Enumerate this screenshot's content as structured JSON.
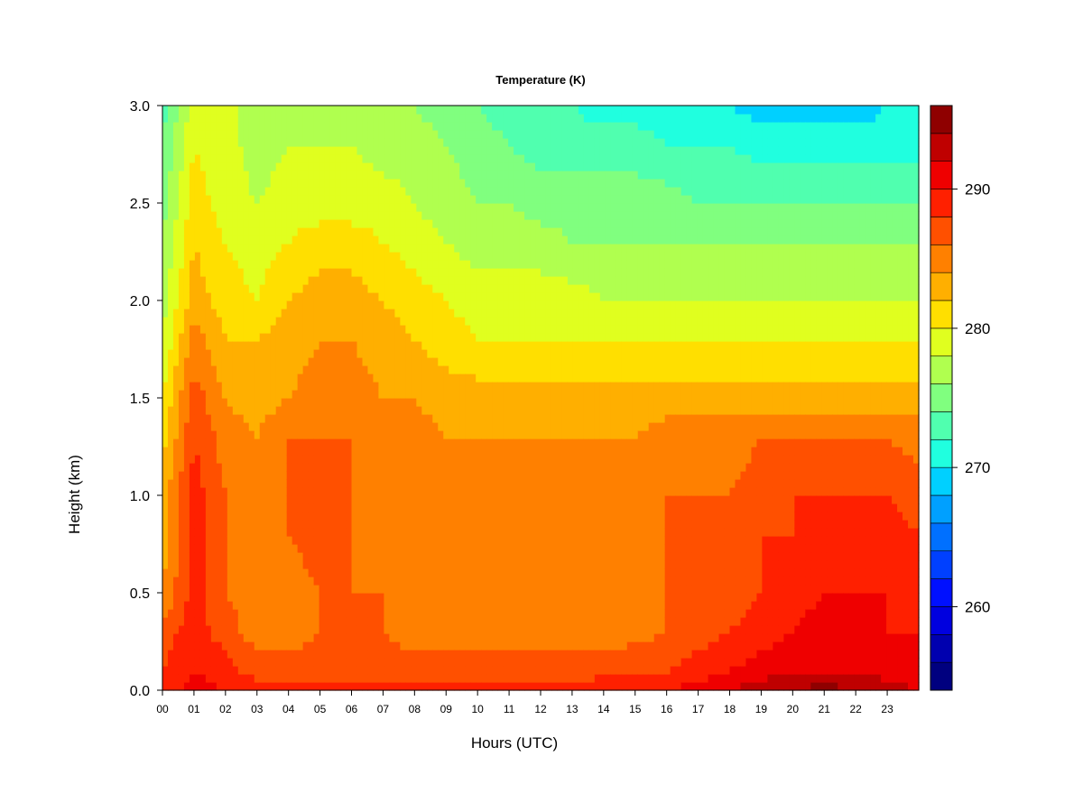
{
  "chart_data": {
    "type": "heatmap",
    "title": "Temperature (K)",
    "xlabel": "Hours (UTC)",
    "ylabel": "Height (km)",
    "xlim": [
      0,
      24
    ],
    "ylim": [
      0.0,
      3.0
    ],
    "x_ticks": [
      "00",
      "01",
      "02",
      "03",
      "04",
      "05",
      "06",
      "07",
      "08",
      "09",
      "10",
      "11",
      "12",
      "13",
      "14",
      "15",
      "16",
      "17",
      "18",
      "19",
      "20",
      "21",
      "22",
      "23"
    ],
    "y_ticks": [
      "0.0",
      "0.5",
      "1.0",
      "1.5",
      "2.0",
      "2.5",
      "3.0"
    ],
    "colorbar": {
      "label_values": [
        "260",
        "270",
        "280",
        "290"
      ],
      "range": [
        254,
        296
      ],
      "levels": 21,
      "colors": [
        "#00007F",
        "#0000AF",
        "#0000DF",
        "#0010FF",
        "#0040FF",
        "#0070FF",
        "#00A0FF",
        "#00D0FF",
        "#20FFDF",
        "#50FFAF",
        "#80FF7F",
        "#B0FF4F",
        "#E0FF1F",
        "#FFDF00",
        "#FFAF00",
        "#FF8000",
        "#FF5000",
        "#FF2000",
        "#EF0000",
        "#BF0000",
        "#8F0000"
      ]
    },
    "height_km": [
      0.0,
      0.1,
      0.3,
      0.5,
      0.8,
      1.0,
      1.3,
      1.5,
      1.8,
      2.0,
      2.3,
      2.5,
      2.8,
      3.0
    ],
    "hours_utc": [
      0,
      1,
      2,
      3,
      4,
      5,
      6,
      7,
      8,
      9,
      10,
      11,
      12,
      13,
      14,
      15,
      16,
      17,
      18,
      19,
      20,
      21,
      22,
      23,
      24
    ],
    "temperature_k": [
      [
        289,
        288,
        287,
        284,
        283,
        283,
        281,
        280,
        278,
        277,
        276,
        275,
        274,
        273
      ],
      [
        291,
        290,
        289,
        289,
        289,
        289,
        288,
        287,
        285,
        283,
        282,
        281,
        280,
        279
      ],
      [
        290,
        289,
        287,
        286,
        286,
        286,
        285,
        284,
        282,
        281,
        280,
        279,
        279,
        279
      ],
      [
        289,
        287,
        285,
        285,
        285,
        285,
        284,
        283,
        282,
        280,
        279,
        278,
        277,
        276
      ],
      [
        289,
        287,
        285,
        285,
        286,
        286,
        286,
        284,
        283,
        282,
        280,
        279,
        278,
        277
      ],
      [
        289,
        287,
        286,
        286,
        287,
        287,
        286,
        285,
        284,
        283,
        281,
        279,
        278,
        277
      ],
      [
        289,
        287,
        286,
        286,
        286,
        286,
        286,
        285,
        284,
        283,
        281,
        279,
        278,
        277
      ],
      [
        289,
        287,
        286,
        286,
        285,
        285,
        285,
        284,
        283,
        282,
        280,
        279,
        277,
        276
      ],
      [
        289,
        287,
        285,
        285,
        285,
        285,
        285,
        284,
        282,
        281,
        279,
        278,
        277,
        276
      ],
      [
        289,
        287,
        285,
        285,
        285,
        285,
        284,
        283,
        281,
        280,
        278,
        277,
        276,
        275
      ],
      [
        289,
        287,
        285,
        285,
        285,
        285,
        284,
        283,
        280,
        279,
        277,
        276,
        275,
        274
      ],
      [
        289,
        287,
        285,
        286,
        285,
        285,
        284,
        283,
        280,
        279,
        277,
        276,
        274,
        273
      ],
      [
        289,
        287,
        285,
        285,
        285,
        285,
        284,
        283,
        280,
        279,
        277,
        275,
        273,
        272
      ],
      [
        289,
        287,
        285,
        285,
        285,
        285,
        284,
        283,
        280,
        279,
        276,
        275,
        273,
        272
      ],
      [
        290,
        287,
        285,
        285,
        285,
        285,
        284,
        283,
        280,
        278,
        276,
        275,
        273,
        271
      ],
      [
        290,
        288,
        285,
        285,
        285,
        285,
        284,
        283,
        280,
        278,
        276,
        275,
        273,
        271
      ],
      [
        290,
        288,
        286,
        286,
        286,
        286,
        285,
        283,
        280,
        278,
        276,
        275,
        272,
        271
      ],
      [
        291,
        289,
        287,
        287,
        287,
        286,
        285,
        283,
        280,
        278,
        276,
        274,
        272,
        270
      ],
      [
        292,
        290,
        288,
        287,
        287,
        286,
        285,
        283,
        280,
        278,
        276,
        274,
        272,
        270
      ],
      [
        293,
        291,
        289,
        288,
        288,
        287,
        286,
        283,
        280,
        278,
        276,
        274,
        271,
        269
      ],
      [
        294,
        292,
        290,
        289,
        288,
        288,
        286,
        283,
        280,
        278,
        276,
        274,
        271,
        269
      ],
      [
        295,
        292,
        291,
        290,
        289,
        288,
        286,
        283,
        280,
        278,
        276,
        274,
        271,
        269
      ],
      [
        294,
        292,
        291,
        290,
        289,
        288,
        286,
        283,
        280,
        278,
        276,
        274,
        271,
        269
      ],
      [
        293,
        291,
        290,
        290,
        289,
        288,
        286,
        283,
        280,
        278,
        276,
        274,
        271,
        270
      ],
      [
        292,
        291,
        290,
        289,
        288,
        287,
        285,
        283,
        280,
        278,
        276,
        274,
        271,
        270
      ]
    ]
  }
}
